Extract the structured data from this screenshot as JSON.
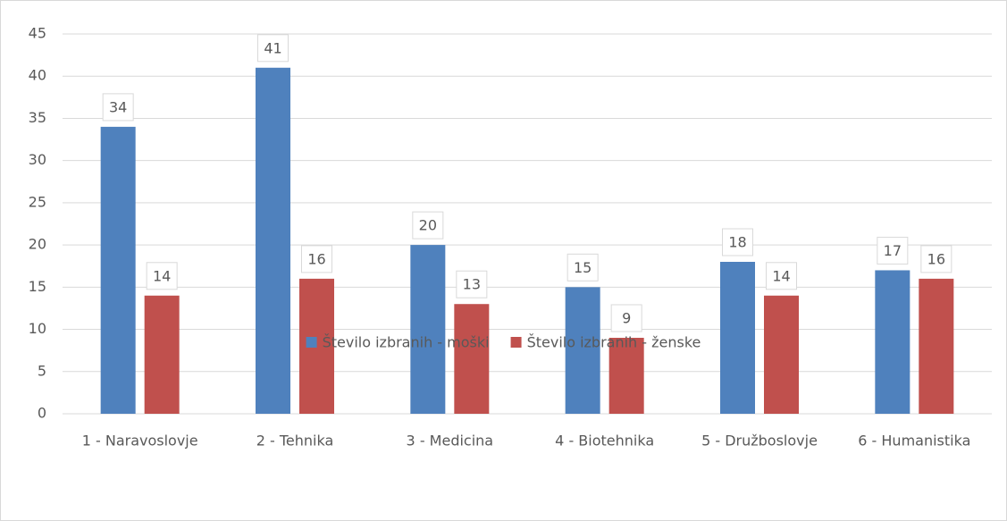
{
  "chart_data": {
    "type": "bar",
    "categories": [
      "1 - Naravoslovje",
      "2 - Tehnika",
      "3 - Medicina",
      "4 - Biotehnika",
      "5 - Družboslovje",
      "6 - Humanistika"
    ],
    "series": [
      {
        "name": "Število izbranih - moški",
        "color": "#4f81bd",
        "values": [
          34,
          41,
          20,
          15,
          18,
          17
        ]
      },
      {
        "name": "Število izbranih - ženske",
        "color": "#c0504d",
        "values": [
          14,
          16,
          13,
          9,
          14,
          16
        ]
      }
    ],
    "ylim": [
      0,
      45
    ],
    "yticks": [
      0,
      5,
      10,
      15,
      20,
      25,
      30,
      35,
      40,
      45
    ],
    "grid": true,
    "legend": "bottom"
  }
}
